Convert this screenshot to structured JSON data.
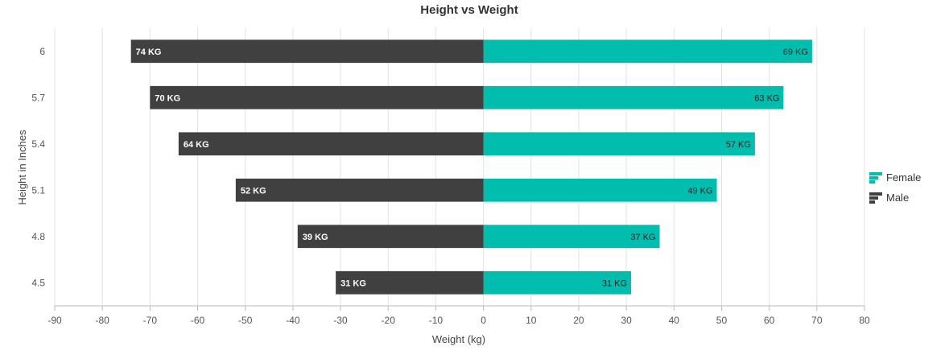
{
  "chart_data": {
    "type": "bar",
    "orientation": "horizontal",
    "title": "Height vs Weight",
    "xlabel": "Weight (kg)",
    "ylabel": "Height in Inches",
    "categories": [
      "6",
      "5.7",
      "5.4",
      "5.1",
      "4.8",
      "4.5"
    ],
    "xlim": [
      -90,
      80
    ],
    "xticks": [
      "-90",
      "-80",
      "-70",
      "-60",
      "-50",
      "-40",
      "-30",
      "-20",
      "-10",
      "0",
      "10",
      "20",
      "30",
      "40",
      "50",
      "60",
      "70",
      "80"
    ],
    "grid": true,
    "legend_position": "right",
    "series": [
      {
        "name": "Female",
        "color": "#00bdae",
        "values": [
          69,
          63,
          57,
          49,
          37,
          31
        ],
        "labels": [
          "69 KG",
          "63 KG",
          "57 KG",
          "49 KG",
          "37 KG",
          "31 KG"
        ]
      },
      {
        "name": "Male",
        "color": "#404041",
        "values": [
          -74,
          -70,
          -64,
          -52,
          -39,
          -31
        ],
        "labels": [
          "74 KG",
          "70 KG",
          "64 KG",
          "52 KG",
          "39 KG",
          "31 KG"
        ]
      }
    ]
  }
}
